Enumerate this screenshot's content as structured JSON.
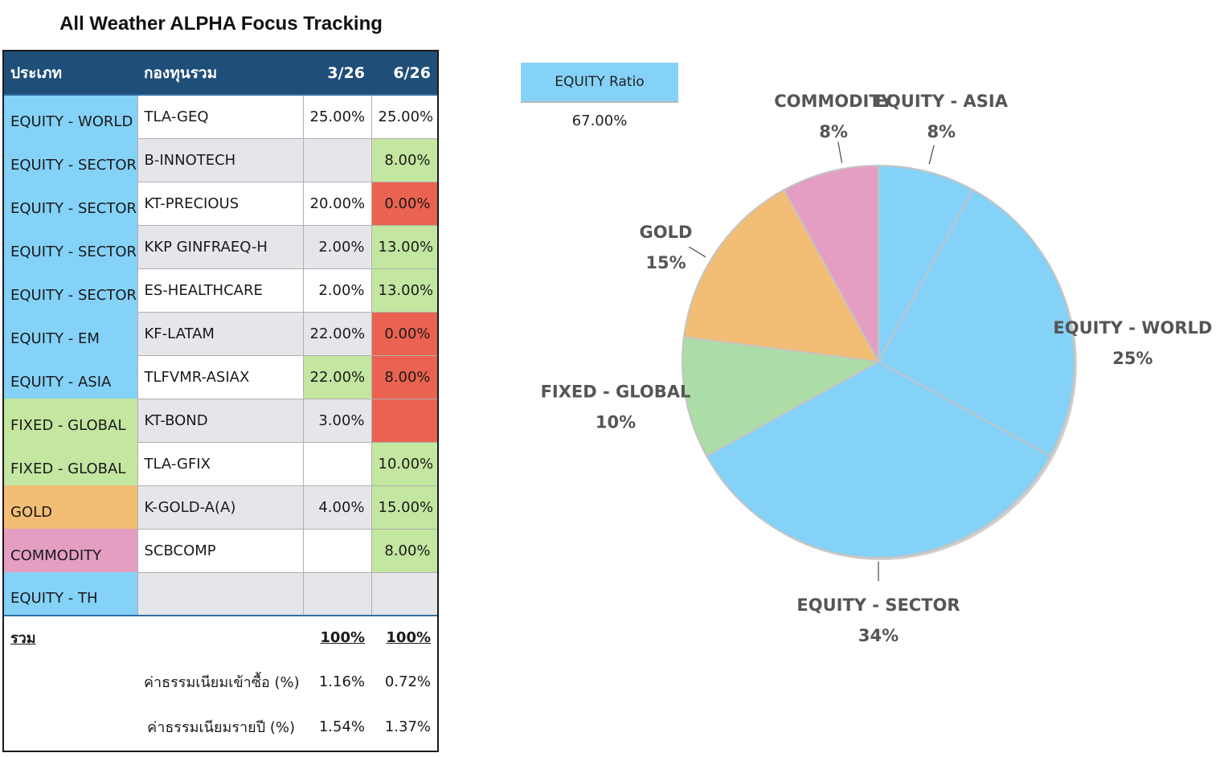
{
  "title": "All Weather ALPHA Focus Tracking",
  "table": {
    "headers": [
      "ประเภท",
      "กองทุนรวม",
      "3/26",
      "6/26"
    ],
    "rows": [
      {
        "type": "EQUITY - WORLD",
        "fund": "TLA-GEQ",
        "q1": "25.00%",
        "q2": "25.00%",
        "type_color": "blue",
        "q1_color": "white",
        "q2_color": "white",
        "fund_color": "white"
      },
      {
        "type": "EQUITY - SECTOR",
        "fund": "B-INNOTECH",
        "q1": "",
        "q2": "8.00%",
        "type_color": "blue",
        "q1_color": "gray",
        "q2_color": "green",
        "fund_color": "gray"
      },
      {
        "type": "EQUITY - SECTOR",
        "fund": "KT-PRECIOUS",
        "q1": "20.00%",
        "q2": "0.00%",
        "type_color": "blue",
        "q1_color": "white",
        "q2_color": "red",
        "fund_color": "white"
      },
      {
        "type": "EQUITY - SECTOR",
        "fund": "KKP GINFRAEQ-H",
        "q1": "2.00%",
        "q2": "13.00%",
        "type_color": "blue",
        "q1_color": "gray",
        "q2_color": "green",
        "fund_color": "gray"
      },
      {
        "type": "EQUITY - SECTOR",
        "fund": "ES-HEALTHCARE",
        "q1": "2.00%",
        "q2": "13.00%",
        "type_color": "blue",
        "q1_color": "white",
        "q2_color": "green",
        "fund_color": "white"
      },
      {
        "type": "EQUITY - EM",
        "fund": "KF-LATAM",
        "q1": "22.00%",
        "q2": "0.00%",
        "type_color": "blue",
        "q1_color": "gray",
        "q2_color": "red",
        "fund_color": "gray"
      },
      {
        "type": "EQUITY - ASIA",
        "fund": "TLFVMR-ASIAX",
        "q1": "22.00%",
        "q2": "8.00%",
        "type_color": "blue",
        "q1_color": "green",
        "q2_color": "red",
        "fund_color": "white"
      },
      {
        "type": "FIXED - GLOBAL",
        "fund": "KT-BOND",
        "q1": "3.00%",
        "q2": "",
        "type_color": "lgreen",
        "q1_color": "gray",
        "q2_color": "red",
        "fund_color": "gray"
      },
      {
        "type": "FIXED - GLOBAL",
        "fund": "TLA-GFIX",
        "q1": "",
        "q2": "10.00%",
        "type_color": "lgreen",
        "q1_color": "white",
        "q2_color": "green",
        "fund_color": "white"
      },
      {
        "type": "GOLD",
        "fund": "K-GOLD-A(A)",
        "q1": "4.00%",
        "q2": "15.00%",
        "type_color": "orange",
        "q1_color": "gray",
        "q2_color": "green",
        "fund_color": "gray"
      },
      {
        "type": "COMMODITY",
        "fund": "SCBCOMP",
        "q1": "",
        "q2": "8.00%",
        "type_color": "pink",
        "q1_color": "white",
        "q2_color": "green",
        "fund_color": "white"
      },
      {
        "type": "EQUITY - TH",
        "fund": "",
        "q1": "",
        "q2": "",
        "type_color": "blue",
        "q1_color": "gray",
        "q2_color": "gray",
        "fund_color": "gray"
      }
    ],
    "total": {
      "label": "รวม",
      "q1": "100%",
      "q2": "100%"
    },
    "fees": [
      {
        "label": "ค่าธรรมเนียมเข้าซื้อ (%)",
        "q1": "1.16%",
        "q2": "0.72%"
      },
      {
        "label": "ค่าธรรมเนียมรายปี (%)",
        "q1": "1.54%",
        "q2": "1.37%"
      }
    ]
  },
  "equity_ratio": {
    "label": "EQUITY Ratio",
    "value": "67.00%"
  },
  "chart_data": {
    "type": "pie",
    "slices": [
      {
        "name": "EQUITY - ASIA",
        "value": 8,
        "label": "8%",
        "color": "#85d2f8"
      },
      {
        "name": "EQUITY - WORLD",
        "value": 25,
        "label": "25%",
        "color": "#85d2f8"
      },
      {
        "name": "EQUITY - SECTOR",
        "value": 34,
        "label": "34%",
        "color": "#85d2f8"
      },
      {
        "name": "FIXED - GLOBAL",
        "value": 10,
        "label": "10%",
        "color": "#addda6"
      },
      {
        "name": "GOLD",
        "value": 15,
        "label": "15%",
        "color": "#f2bd74"
      },
      {
        "name": "COMMODITY",
        "value": 8,
        "label": "8%",
        "color": "#e49ec2"
      }
    ],
    "start_angle_deg": 0,
    "direction": "clockwise"
  }
}
